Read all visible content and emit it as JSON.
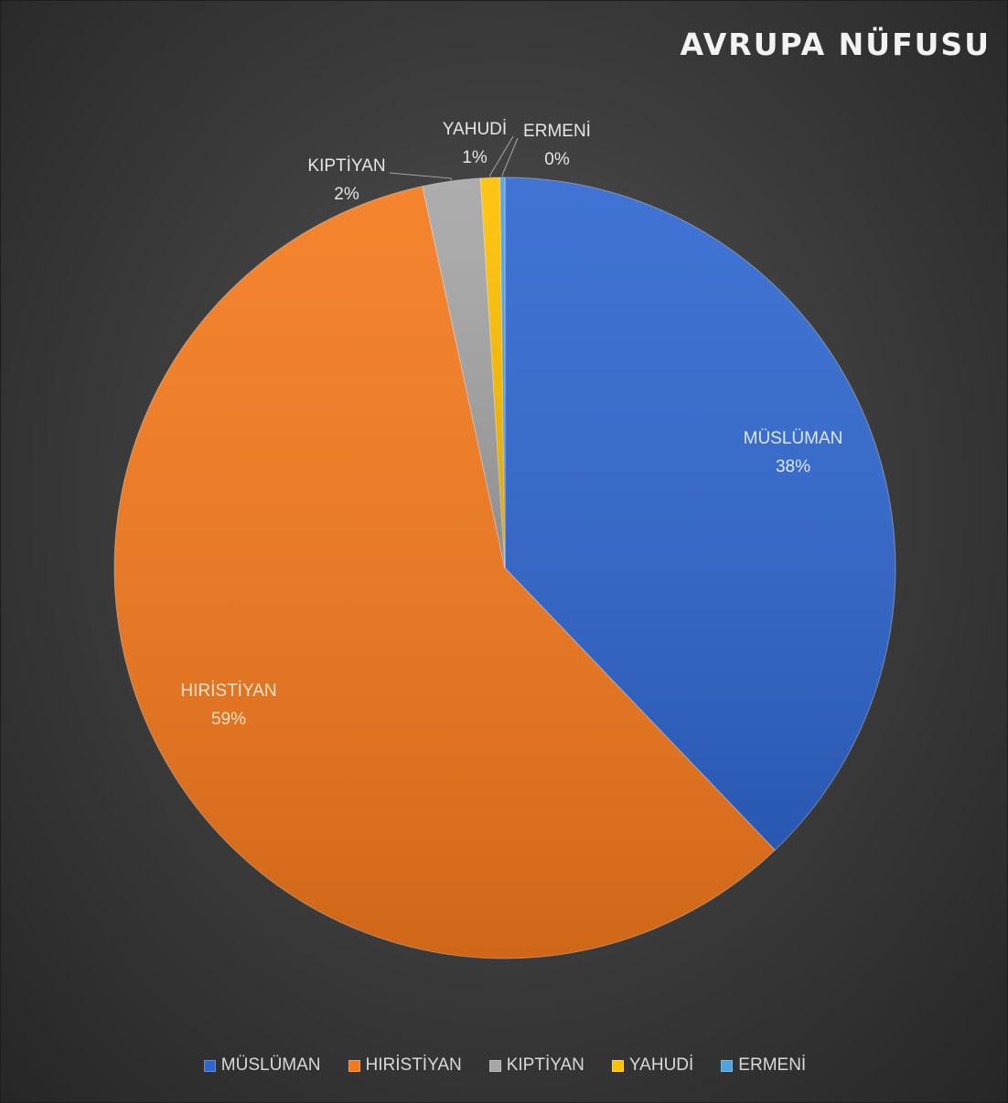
{
  "chart_data": {
    "type": "pie",
    "title": "AVRUPA NÜFUSU",
    "categories": [
      "MÜSLÜMAN",
      "HIRİSTİYAN",
      "KIPTİYAN",
      "YAHUDİ",
      "ERMENİ"
    ],
    "values": [
      38,
      59,
      2.4,
      0.8,
      0.2
    ],
    "percent_labels": [
      "38%",
      "59%",
      "2%",
      "1%",
      "0%"
    ],
    "colors": [
      "#2f67d0",
      "#f4791c",
      "#a6a6a6",
      "#ffc000",
      "#4fa3e0"
    ],
    "legend_position": "bottom"
  }
}
